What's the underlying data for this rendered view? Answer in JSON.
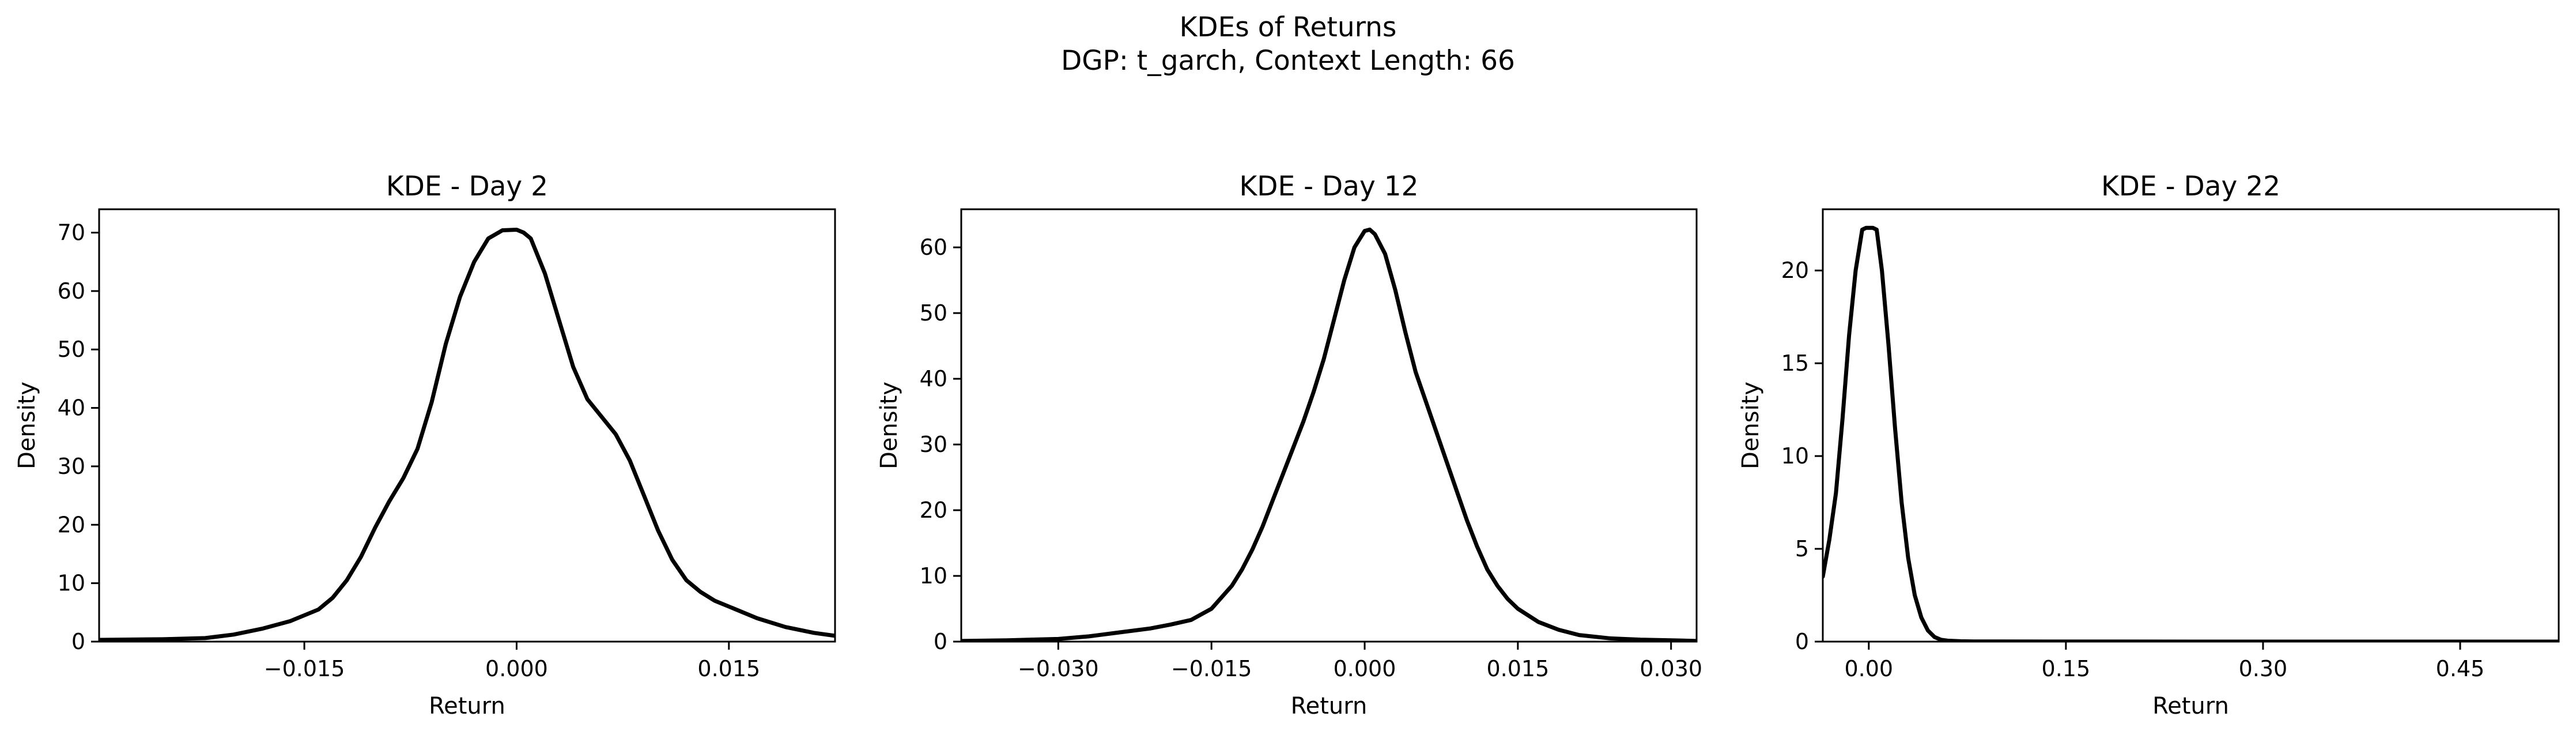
{
  "figure": {
    "title_line1": "KDEs of Returns",
    "title_line2": "DGP: t_garch, Context Length: 66"
  },
  "chart_data": [
    {
      "type": "line",
      "title": "KDE - Day 2",
      "xlabel": "Return",
      "ylabel": "Density",
      "xlim": [
        -0.0295,
        0.0225
      ],
      "ylim": [
        0,
        74
      ],
      "xticks": [
        -0.015,
        0.0,
        0.015
      ],
      "xtick_labels": [
        "−0.015",
        "0.000",
        "0.015"
      ],
      "yticks": [
        0,
        10,
        20,
        30,
        40,
        50,
        60,
        70
      ],
      "ytick_labels": [
        "0",
        "10",
        "20",
        "30",
        "40",
        "50",
        "60",
        "70"
      ],
      "grid": false,
      "legend": "none",
      "series": [
        {
          "color": "#000000",
          "x": [
            -0.0295,
            -0.025,
            -0.022,
            -0.02,
            -0.018,
            -0.016,
            -0.014,
            -0.013,
            -0.012,
            -0.011,
            -0.01,
            -0.009,
            -0.008,
            -0.007,
            -0.006,
            -0.005,
            -0.004,
            -0.003,
            -0.002,
            -0.001,
            0.0,
            0.0005,
            0.001,
            0.002,
            0.003,
            0.004,
            0.005,
            0.006,
            0.007,
            0.008,
            0.009,
            0.01,
            0.011,
            0.012,
            0.013,
            0.014,
            0.015,
            0.017,
            0.019,
            0.021,
            0.0225
          ],
          "y": [
            0.3,
            0.4,
            0.6,
            1.2,
            2.2,
            3.5,
            5.5,
            7.5,
            10.5,
            14.5,
            19.5,
            24,
            28,
            33,
            41,
            51,
            59,
            65,
            69,
            70.4,
            70.5,
            70,
            69,
            63,
            55,
            47,
            41.5,
            38.5,
            35.5,
            31,
            25,
            19,
            14,
            10.5,
            8.5,
            7,
            6,
            4,
            2.5,
            1.5,
            1.0
          ]
        }
      ]
    },
    {
      "type": "line",
      "title": "KDE - Day 12",
      "xlabel": "Return",
      "ylabel": "Density",
      "xlim": [
        -0.0395,
        0.0325
      ],
      "ylim": [
        0,
        65.8
      ],
      "xticks": [
        -0.03,
        -0.015,
        0.0,
        0.015,
        0.03
      ],
      "xtick_labels": [
        "−0.030",
        "−0.015",
        "0.000",
        "0.015",
        "0.030"
      ],
      "yticks": [
        0,
        10,
        20,
        30,
        40,
        50,
        60
      ],
      "ytick_labels": [
        "0",
        "10",
        "20",
        "30",
        "40",
        "50",
        "60"
      ],
      "grid": false,
      "legend": "none",
      "series": [
        {
          "color": "#000000",
          "x": [
            -0.0395,
            -0.035,
            -0.03,
            -0.027,
            -0.024,
            -0.021,
            -0.019,
            -0.017,
            -0.015,
            -0.013,
            -0.012,
            -0.011,
            -0.01,
            -0.009,
            -0.008,
            -0.007,
            -0.006,
            -0.005,
            -0.004,
            -0.003,
            -0.002,
            -0.001,
            0.0,
            0.0005,
            0.001,
            0.002,
            0.003,
            0.004,
            0.005,
            0.006,
            0.007,
            0.008,
            0.009,
            0.01,
            0.011,
            0.012,
            0.013,
            0.014,
            0.015,
            0.017,
            0.019,
            0.021,
            0.024,
            0.027,
            0.03,
            0.0325
          ],
          "y": [
            0.1,
            0.2,
            0.4,
            0.8,
            1.4,
            2.0,
            2.6,
            3.3,
            5.0,
            8.5,
            11,
            14,
            17.5,
            21.5,
            25.5,
            29.5,
            33.5,
            38,
            43,
            49,
            55,
            60,
            62.5,
            62.7,
            62,
            59,
            53.5,
            47,
            41,
            36.5,
            32,
            27.5,
            23,
            18.5,
            14.5,
            11,
            8.5,
            6.5,
            5,
            3,
            1.8,
            1.0,
            0.5,
            0.3,
            0.2,
            0.1
          ]
        }
      ]
    },
    {
      "type": "line",
      "title": "KDE - Day 22",
      "xlabel": "Return",
      "ylabel": "Density",
      "xlim": [
        -0.035,
        0.525
      ],
      "ylim": [
        0,
        23.3
      ],
      "xticks": [
        0.0,
        0.15,
        0.3,
        0.45
      ],
      "xtick_labels": [
        "0.00",
        "0.15",
        "0.30",
        "0.45"
      ],
      "yticks": [
        0,
        5,
        10,
        15,
        20
      ],
      "ytick_labels": [
        "0",
        "5",
        "10",
        "15",
        "20"
      ],
      "grid": false,
      "legend": "none",
      "series": [
        {
          "color": "#000000",
          "x": [
            -0.035,
            -0.03,
            -0.025,
            -0.02,
            -0.015,
            -0.01,
            -0.005,
            -0.002,
            0.0,
            0.003,
            0.006,
            0.01,
            0.015,
            0.02,
            0.025,
            0.03,
            0.035,
            0.04,
            0.045,
            0.05,
            0.055,
            0.06,
            0.07,
            0.08,
            0.1,
            0.15,
            0.3,
            0.45,
            0.525
          ],
          "y": [
            3.5,
            5.5,
            8.0,
            12.0,
            16.5,
            20.0,
            22.2,
            22.3,
            22.3,
            22.3,
            22.2,
            20.0,
            16.0,
            11.5,
            7.5,
            4.5,
            2.5,
            1.3,
            0.6,
            0.25,
            0.1,
            0.05,
            0.02,
            0.01,
            0.005,
            0.002,
            0.001,
            0.001,
            0.001
          ]
        }
      ]
    }
  ]
}
